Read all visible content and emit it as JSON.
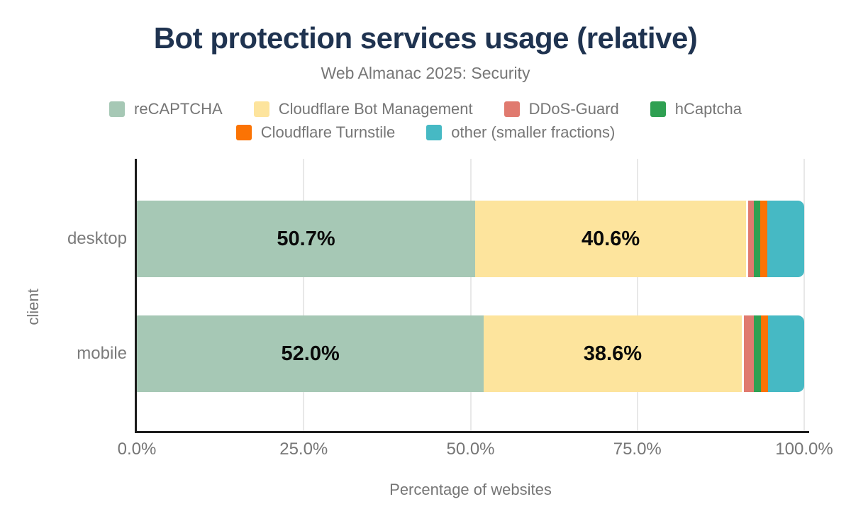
{
  "chart_data": {
    "type": "bar",
    "stacked": true,
    "orientation": "horizontal",
    "title": "Bot protection services usage (relative)",
    "subtitle": "Web Almanac 2025: Security",
    "xlabel": "Percentage of websites",
    "ylabel": "client",
    "categories": [
      "desktop",
      "mobile"
    ],
    "series": [
      {
        "name": "reCAPTCHA",
        "color": "#a6c8b5",
        "values": [
          50.7,
          52.0
        ],
        "labels": [
          "50.7%",
          "52.0%"
        ]
      },
      {
        "name": "Cloudflare Bot Management",
        "color": "#fde49d",
        "values": [
          40.6,
          38.6
        ],
        "labels": [
          "40.6%",
          "38.6%"
        ]
      },
      {
        "name": "DDoS-Guard",
        "color": "#e07a6f",
        "values": [
          1.2,
          1.9
        ],
        "labels": [
          "",
          ""
        ],
        "gap_before": true
      },
      {
        "name": "hCaptcha",
        "color": "#2fa052",
        "values": [
          0.9,
          1.0
        ],
        "labels": [
          "",
          ""
        ]
      },
      {
        "name": "Cloudflare Turnstile",
        "color": "#fb7304",
        "values": [
          1.1,
          1.1
        ],
        "labels": [
          "",
          ""
        ]
      },
      {
        "name": "other (smaller fractions)",
        "color": "#46b9c4",
        "values": [
          5.5,
          5.4
        ],
        "labels": [
          "",
          ""
        ]
      }
    ],
    "x_ticks": [
      {
        "label": "0.0%",
        "pos": 0
      },
      {
        "label": "25.0%",
        "pos": 25
      },
      {
        "label": "50.0%",
        "pos": 50
      },
      {
        "label": "75.0%",
        "pos": 75
      },
      {
        "label": "100.0%",
        "pos": 100
      }
    ],
    "xlim": [
      0,
      100
    ],
    "grid": "vertical",
    "gridline_positions": [
      25,
      50,
      75,
      100
    ],
    "legend_rows": [
      [
        0,
        1,
        2,
        3
      ],
      [
        4,
        5
      ]
    ],
    "legend_position": "top",
    "colors": {
      "title": "#1f3350",
      "axis_text": "#767676",
      "axis_line": "#1c1c1c",
      "gridline": "#e8e8e8",
      "data_label": "#0a0a0a"
    }
  }
}
